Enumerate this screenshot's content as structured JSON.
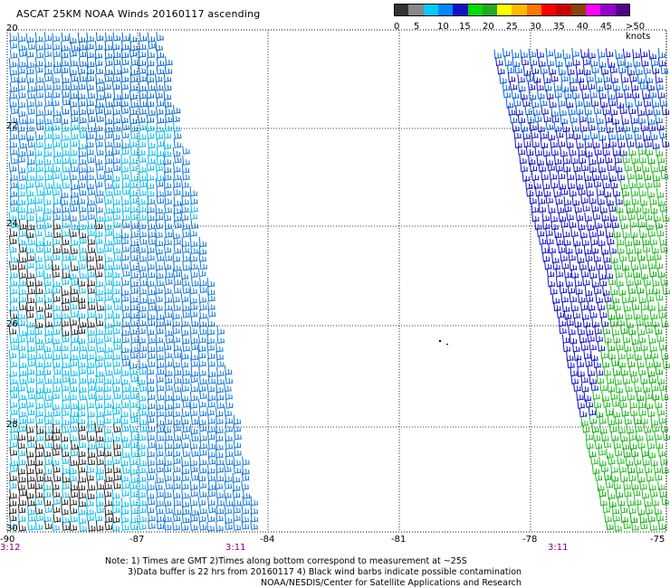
{
  "title": "ASCAT 25KM NOAA Winds 20160117 ascending",
  "colorbar": {
    "labels": [
      "0",
      "5",
      "10",
      "15",
      "20",
      "25",
      "30",
      "35",
      "40",
      "45",
      ">50 knots"
    ],
    "colors": [
      "#333333",
      "#888888",
      "#00ccff",
      "#0088ff",
      "#1111cc",
      "#00dd00",
      "#22aa22",
      "#ffff00",
      "#ffbb00",
      "#ff7700",
      "#ff0000",
      "#cc0000",
      "#884400",
      "#ff00ff",
      "#9900cc",
      "#550088"
    ]
  },
  "y_axis_labels": [
    "20",
    "22",
    "24",
    "26",
    "28",
    "30"
  ],
  "x_axis_labels": [
    "-90",
    "-87",
    "-84",
    "-81",
    "-78",
    "-75"
  ],
  "time_labels": [
    "3:12",
    "3:11",
    "3:11"
  ],
  "notes": [
    "Note: 1) Times are GMT 2)Times along bottom correspond to measurement at ~25S",
    "3)Data buffer is 22 hrs from 20160117 4) Black wind barbs indicate possible contamination",
    "NOAA/NESDIS/Center for Satellite Applications and Research"
  ],
  "map": {
    "lat_range": [
      -30,
      -20
    ],
    "lon_range": [
      -90,
      -75
    ],
    "gridlines": true,
    "swaths": [
      {
        "side": "west",
        "colors": [
          "#1177dd",
          "#00bbee",
          "#0066cc",
          "#222222"
        ]
      },
      {
        "side": "east",
        "colors": [
          "#1111cc",
          "#0066dd",
          "#22bb22",
          "#00aa00"
        ]
      }
    ]
  }
}
